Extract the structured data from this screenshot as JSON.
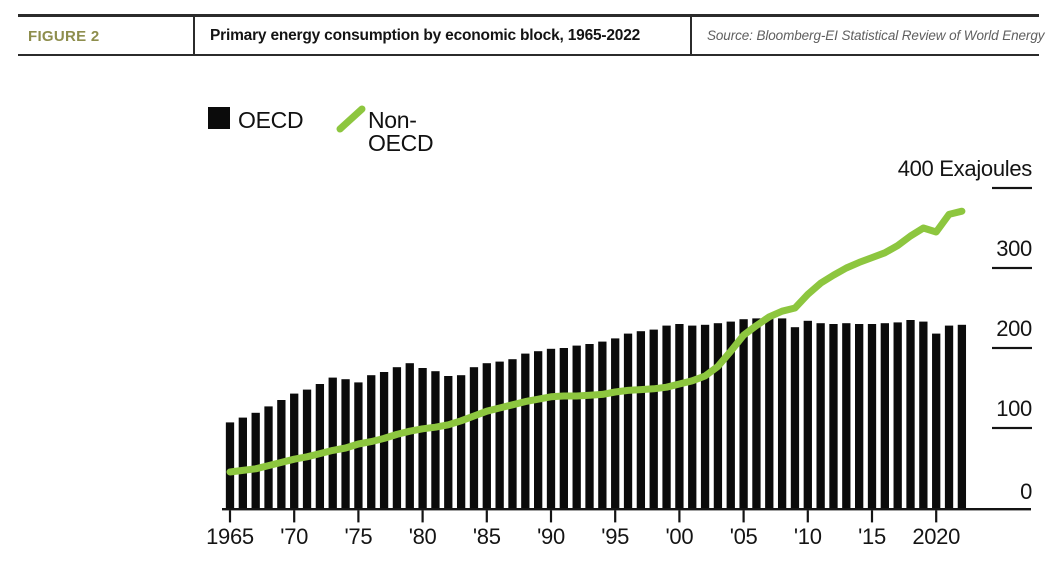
{
  "header": {
    "figure_label": "FIGURE 2",
    "title": "Primary energy consumption by economic block, 1965-2022",
    "source": "Source: Bloomberg-EI Statistical Review of World Energy"
  },
  "legend": {
    "oecd_label": "OECD",
    "non_oecd_label": "Non-OECD"
  },
  "colors": {
    "oecd_bar": "#0b0b0b",
    "non_oecd_line": "#8dc63f",
    "figure_label": "#8e8e4d",
    "axis": "#141414",
    "source_text": "#5f5f5f"
  },
  "chart_data": {
    "type": "combo",
    "title": "Primary energy consumption by economic block, 1965-2022",
    "x": [
      1965,
      1966,
      1967,
      1968,
      1969,
      1970,
      1971,
      1972,
      1973,
      1974,
      1975,
      1976,
      1977,
      1978,
      1979,
      1980,
      1981,
      1982,
      1983,
      1984,
      1985,
      1986,
      1987,
      1988,
      1989,
      1990,
      1991,
      1992,
      1993,
      1994,
      1995,
      1996,
      1997,
      1998,
      1999,
      2000,
      2001,
      2002,
      2003,
      2004,
      2005,
      2006,
      2007,
      2008,
      2009,
      2010,
      2011,
      2012,
      2013,
      2014,
      2015,
      2016,
      2017,
      2018,
      2019,
      2020,
      2021,
      2022
    ],
    "series": [
      {
        "name": "OECD",
        "type": "bar",
        "color": "#0b0b0b",
        "values": [
          107,
          113,
          119,
          127,
          135,
          143,
          148,
          155,
          163,
          161,
          157,
          166,
          170,
          176,
          181,
          175,
          171,
          165,
          166,
          176,
          181,
          183,
          186,
          193,
          196,
          199,
          200,
          203,
          205,
          208,
          212,
          218,
          221,
          223,
          228,
          230,
          228,
          229,
          231,
          233,
          236,
          237,
          240,
          237,
          226,
          234,
          231,
          230,
          231,
          230,
          230,
          231,
          232,
          235,
          233,
          218,
          228,
          229
        ]
      },
      {
        "name": "Non-OECD",
        "type": "line",
        "color": "#8dc63f",
        "values": [
          45,
          47,
          49,
          53,
          57,
          61,
          64,
          68,
          72,
          75,
          80,
          83,
          87,
          92,
          96,
          99,
          101,
          104,
          109,
          115,
          121,
          125,
          129,
          133,
          136,
          139,
          140,
          140,
          141,
          142,
          145,
          147,
          148,
          149,
          151,
          155,
          159,
          165,
          177,
          196,
          216,
          228,
          239,
          246,
          250,
          267,
          281,
          291,
          300,
          307,
          313,
          319,
          328,
          340,
          350,
          345,
          367,
          371
        ]
      }
    ],
    "xlabel": "",
    "ylabel": "Exajoules",
    "ylim": [
      0,
      400
    ],
    "yticks": [
      0,
      100,
      200,
      300,
      400
    ],
    "ytick_labels": [
      "0",
      "100",
      "200",
      "300",
      "400 Exajoules"
    ],
    "xtick_years": [
      1965,
      1970,
      1975,
      1980,
      1985,
      1990,
      1995,
      2000,
      2005,
      2010,
      2015,
      2020
    ],
    "xtick_labels": [
      "1965",
      "'70",
      "'75",
      "'80",
      "'85",
      "'90",
      "'95",
      "'00",
      "'05",
      "'10",
      "'15",
      "2020"
    ],
    "grid": false,
    "legend_position": "top-left",
    "y_axis_side": "right"
  }
}
